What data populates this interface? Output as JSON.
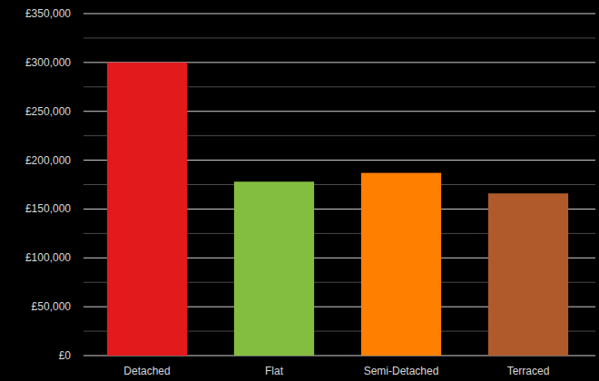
{
  "chart_data": {
    "type": "bar",
    "categories": [
      "Detached",
      "Flat",
      "Semi-Detached",
      "Terraced"
    ],
    "values": [
      300000,
      178000,
      187000,
      166000
    ],
    "colors": [
      "#e31a1c",
      "#84be41",
      "#ff8000",
      "#b05a2c"
    ],
    "ylim": [
      0,
      350000
    ],
    "yticks": [
      {
        "value": 0,
        "label": "£0"
      },
      {
        "value": 50000,
        "label": "£50,000"
      },
      {
        "value": 100000,
        "label": "£100,000"
      },
      {
        "value": 150000,
        "label": "£150,000"
      },
      {
        "value": 200000,
        "label": "£200,000"
      },
      {
        "value": 250000,
        "label": "£250,000"
      },
      {
        "value": 300000,
        "label": "£300,000"
      },
      {
        "value": 350000,
        "label": "£350,000"
      }
    ],
    "grid": true
  }
}
